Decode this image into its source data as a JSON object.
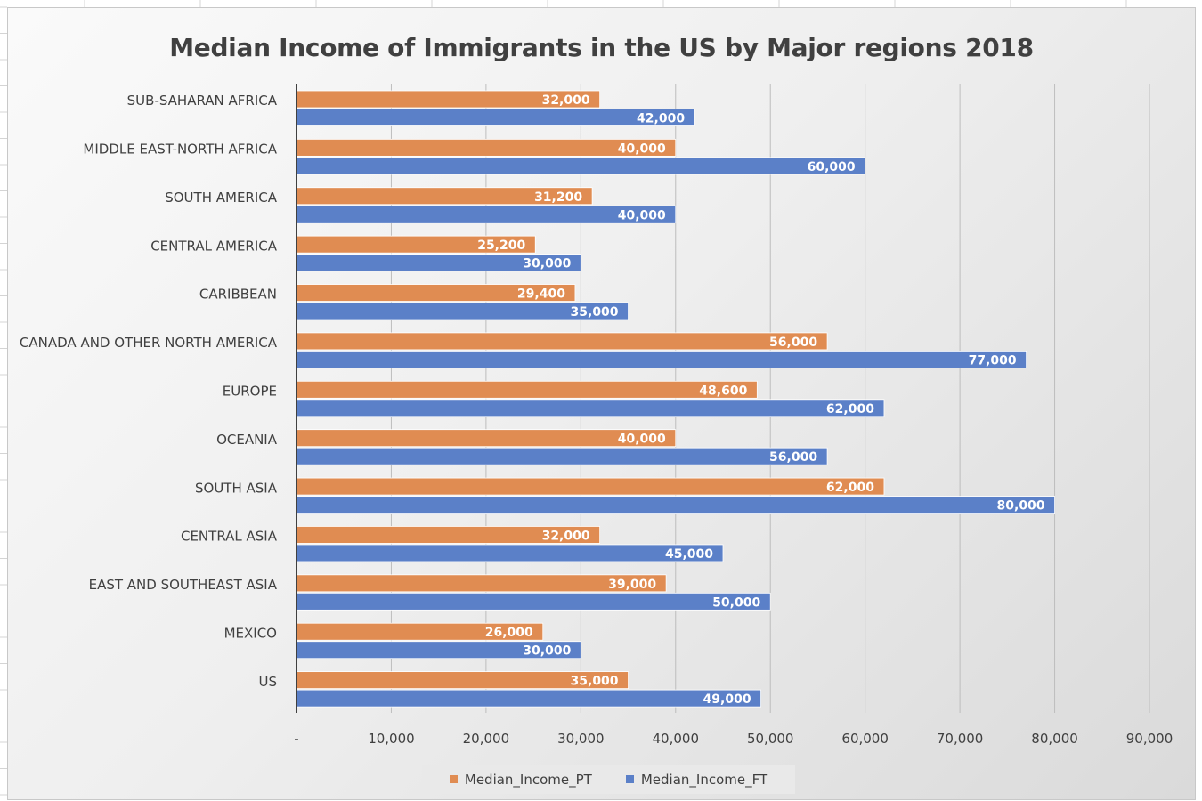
{
  "chart_data": {
    "type": "bar",
    "orientation": "horizontal",
    "title": "Median Income of Immigrants in the US by Major regions 2018",
    "categories": [
      "SUB-SAHARAN AFRICA",
      "MIDDLE EAST-NORTH AFRICA",
      "SOUTH AMERICA",
      "CENTRAL AMERICA",
      "CARIBBEAN",
      "CANADA AND OTHER NORTH AMERICA",
      "EUROPE",
      "OCEANIA",
      "SOUTH ASIA",
      "CENTRAL ASIA",
      "EAST AND SOUTHEAST ASIA",
      "MEXICO",
      "US"
    ],
    "series": [
      {
        "name": "Median_Income_PT",
        "color": "#e08c52",
        "values": [
          32000,
          40000,
          31200,
          25200,
          29400,
          56000,
          48600,
          40000,
          62000,
          32000,
          39000,
          26000,
          35000
        ],
        "labels": [
          "32,000",
          "40,000",
          "31,200",
          "25,200",
          "29,400",
          "56,000",
          "48,600",
          "40,000",
          "62,000",
          "32,000",
          "39,000",
          "26,000",
          "35,000"
        ]
      },
      {
        "name": "Median_Income_FT",
        "color": "#5b80c8",
        "values": [
          42000,
          60000,
          40000,
          30000,
          35000,
          77000,
          62000,
          56000,
          80000,
          45000,
          50000,
          30000,
          49000
        ],
        "labels": [
          "42,000",
          "60,000",
          "40,000",
          "30,000",
          "35,000",
          "77,000",
          "62,000",
          "56,000",
          "80,000",
          "45,000",
          "50,000",
          "30,000",
          "49,000"
        ]
      }
    ],
    "xlim": [
      0,
      90000
    ],
    "x_ticks": [
      0,
      10000,
      20000,
      30000,
      40000,
      50000,
      60000,
      70000,
      80000,
      90000
    ],
    "x_tick_labels": [
      "-",
      "10,000",
      "20,000",
      "30,000",
      "40,000",
      "50,000",
      "60,000",
      "70,000",
      "80,000",
      "90,000"
    ],
    "grid": true,
    "legend_position": "bottom"
  }
}
